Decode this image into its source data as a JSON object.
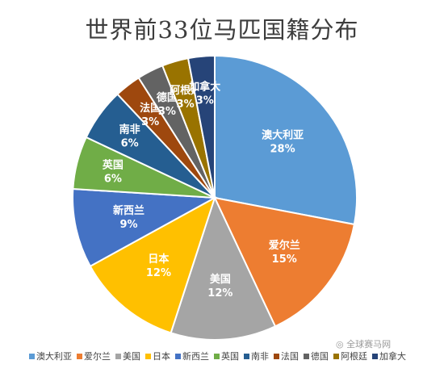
{
  "chart_data": {
    "type": "pie",
    "title": "世界前33位马匹国籍分布",
    "slices": [
      {
        "name": "澳大利亚",
        "value": 28,
        "label": "28%",
        "color": "#5b9bd5"
      },
      {
        "name": "爱尔兰",
        "value": 15,
        "label": "15%",
        "color": "#ed7d31"
      },
      {
        "name": "美国",
        "value": 12,
        "label": "12%",
        "color": "#a5a5a5"
      },
      {
        "name": "日本",
        "value": 12,
        "label": "12%",
        "color": "#ffc000"
      },
      {
        "name": "新西兰",
        "value": 9,
        "label": "9%",
        "color": "#4472c4"
      },
      {
        "name": "英国",
        "value": 6,
        "label": "6%",
        "color": "#70ad47"
      },
      {
        "name": "南非",
        "value": 6,
        "label": "6%",
        "color": "#255e91"
      },
      {
        "name": "法国",
        "value": 3,
        "label": "3%",
        "color": "#9e480e"
      },
      {
        "name": "德国",
        "value": 3,
        "label": "3%",
        "color": "#636363"
      },
      {
        "name": "阿根廷",
        "value": 3,
        "label": "3%",
        "color": "#997300"
      },
      {
        "name": "加拿大",
        "value": 3,
        "label": "3%",
        "color": "#264478"
      }
    ],
    "legend_position": "bottom"
  },
  "watermark": "◎ 全球赛马网"
}
